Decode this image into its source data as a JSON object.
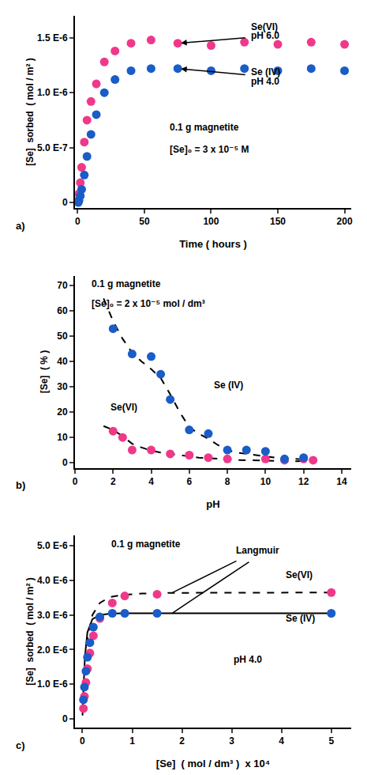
{
  "chart_data": [
    {
      "type": "scatter",
      "xlabel": "Time ( hours )",
      "ylabel": "[Se]  sorbed  ( mol / m² )",
      "xlim": [
        -2,
        205
      ],
      "ylim": [
        -5e-08,
        1.7e-06
      ],
      "xticks": [
        0,
        50,
        100,
        150,
        200
      ],
      "yticks": [
        0,
        {
          "value": 5e-07,
          "label": "5.0 E-7"
        },
        {
          "value": 1e-06,
          "label": "1.0 E-6"
        },
        {
          "value": 1.5e-06,
          "label": "1.5 E-6"
        }
      ],
      "grid": false,
      "annotations": [
        "Se(VI)",
        "pH 6.0",
        "Se (IV)",
        "pH 4.0",
        "0.1 g magnetite",
        "[Se]₀ = 3 x 10⁻⁵ M",
        "a)"
      ],
      "series": [
        {
          "type": "scatter",
          "marker": "circle",
          "color": "#F0388A",
          "x": [
            0.5,
            1,
            2,
            3,
            5,
            7,
            10,
            14,
            20,
            28,
            40,
            55,
            75,
            100,
            125,
            150,
            175,
            200
          ],
          "values": [
            2e-08,
            8e-08,
            1.8e-07,
            3.2e-07,
            5.5e-07,
            7.5e-07,
            9.2e-07,
            1.08e-06,
            1.28e-06,
            1.38e-06,
            1.45e-06,
            1.48e-06,
            1.45e-06,
            1.43e-06,
            1.46e-06,
            1.44e-06,
            1.46e-06,
            1.44e-06
          ]
        },
        {
          "type": "scatter",
          "marker": "circle",
          "color": "#1A5CC8",
          "x": [
            0.5,
            1,
            2,
            3,
            5,
            7,
            10,
            14,
            20,
            28,
            40,
            55,
            75,
            100,
            125,
            150,
            175,
            200
          ],
          "values": [
            0.0,
            2e-08,
            6e-08,
            1.2e-07,
            2.5e-07,
            4.2e-07,
            6.2e-07,
            8e-07,
            1e-06,
            1.12e-06,
            1.2e-06,
            1.22e-06,
            1.22e-06,
            1.2e-06,
            1.22e-06,
            1.2e-06,
            1.22e-06,
            1.2e-06
          ]
        }
      ]
    },
    {
      "type": "scatter",
      "xlabel": "pH",
      "ylabel": "[Se]  ( % )",
      "xlim": [
        0,
        14.5
      ],
      "ylim": [
        -2,
        74
      ],
      "xticks": [
        0,
        2,
        4,
        6,
        8,
        10,
        12,
        14
      ],
      "yticks": [
        0,
        10,
        20,
        30,
        40,
        50,
        60,
        70
      ],
      "grid": false,
      "annotations": [
        "0.1 g magnetite",
        "[Se]₀ = 2 x 10⁻⁵ mol / dm³",
        "Se(VI)",
        "Se (IV)",
        "b)"
      ],
      "series": [
        {
          "type": "line",
          "line_style": "dashed",
          "color": "#000000",
          "x": [
            1.5,
            2.0,
            2.5,
            3.0,
            3.5,
            4.0,
            4.5,
            5.0,
            5.5,
            6.0,
            6.5,
            7.0,
            7.5,
            8.0,
            8.5,
            9.0,
            9.5,
            10.0,
            10.5,
            11.0,
            11.5,
            12.0,
            12.5,
            13.0
          ],
          "values": [
            65.0,
            56.0,
            49.0,
            43.5,
            40.0,
            37.0,
            33.5,
            27.0,
            20.0,
            14.0,
            11.5,
            9.5,
            7.0,
            5.0,
            4.0,
            3.5,
            2.8,
            2.5,
            2.0,
            1.8,
            1.5,
            1.3,
            1.0,
            0.8
          ]
        },
        {
          "type": "line",
          "line_style": "dashed",
          "color": "#000000",
          "x": [
            1.5,
            2.0,
            2.5,
            3.0,
            3.5,
            4.0,
            4.5,
            5.0,
            5.5,
            6.0,
            6.5,
            7.0,
            7.5,
            8.0,
            8.5,
            9.0,
            9.5,
            10.0,
            10.5,
            11.0,
            11.5,
            12.0,
            12.5,
            13.0
          ],
          "values": [
            14.5,
            13.0,
            10.5,
            7.5,
            6.0,
            4.8,
            4.0,
            3.5,
            3.0,
            2.5,
            2.0,
            1.8,
            1.5,
            1.3,
            1.1,
            1.0,
            0.9,
            0.8,
            0.7,
            0.65,
            0.6,
            0.7,
            0.7,
            0.6
          ]
        },
        {
          "type": "scatter",
          "marker": "circle",
          "color": "#F0388A",
          "x": [
            2.0,
            2.5,
            3.0,
            4.0,
            5.0,
            6.0,
            7.0,
            8.0,
            10.0,
            11.0,
            12.0,
            12.5
          ],
          "values": [
            12.5,
            10.0,
            5.0,
            5.0,
            3.5,
            3.0,
            2.0,
            1.5,
            1.5,
            1.0,
            1.5,
            1.0
          ]
        },
        {
          "type": "scatter",
          "marker": "circle",
          "color": "#1A5CC8",
          "x": [
            2.0,
            3.0,
            4.0,
            4.5,
            5.0,
            6.0,
            7.0,
            8.0,
            9.0,
            10.0,
            11.0,
            12.0
          ],
          "values": [
            53.0,
            43.0,
            42.0,
            35.0,
            25.0,
            13.0,
            11.5,
            5.0,
            5.0,
            4.5,
            1.5,
            2.0
          ]
        }
      ]
    },
    {
      "type": "scatter",
      "xlabel": "[Se]  ( mol / dm³ )  x 10⁴",
      "ylabel": "[Se]  sorbed  ( mol / m² )",
      "xlim": [
        -1.5e-05,
        0.00054
      ],
      "ylim": [
        -2.5e-07,
        5.3e-06
      ],
      "xticks": [
        0,
        {
          "value": 0.0001,
          "label": "1"
        },
        {
          "value": 0.0002,
          "label": "2"
        },
        {
          "value": 0.0003,
          "label": "3"
        },
        {
          "value": 0.0004,
          "label": "4"
        },
        {
          "value": 0.0005,
          "label": "5"
        }
      ],
      "yticks": [
        0,
        {
          "value": 1e-06,
          "label": "1.0 E-6"
        },
        {
          "value": 2e-06,
          "label": "2.0 E-6"
        },
        {
          "value": 3e-06,
          "label": "3.0 E-6"
        },
        {
          "value": 4e-06,
          "label": "4.0 E-6"
        },
        {
          "value": 5e-06,
          "label": "5.0 E-6"
        }
      ],
      "grid": false,
      "annotations": [
        "0.1 g magnetite",
        "pH 4.0",
        "Langmuir",
        "Se(VI)",
        "Se (IV)",
        "c)"
      ],
      "series": [
        {
          "type": "line",
          "line_style": "dashed",
          "color": "#000000",
          "x": [
            1e-07,
            5e-06,
            1e-05,
            2e-05,
            3.5e-05,
            5.5e-05,
            8e-05,
            0.00012,
            0.00018,
            0.0005
          ],
          "values": [
            1e-07,
            1.5e-06,
            2.3e-06,
            3e-06,
            3.35e-06,
            3.52e-06,
            3.58e-06,
            3.62e-06,
            3.64e-06,
            3.65e-06
          ]
        },
        {
          "type": "line",
          "line_style": "solid",
          "color": "#000000",
          "x": [
            1e-07,
            5e-06,
            1e-05,
            2e-05,
            3.5e-05,
            5.5e-05,
            8e-05,
            0.00012,
            0.00018,
            0.0005
          ],
          "values": [
            2e-07,
            1.8e-06,
            2.5e-06,
            2.88e-06,
            3e-06,
            3.04e-06,
            3.05e-06,
            3.05e-06,
            3.05e-06,
            3.05e-06
          ]
        },
        {
          "type": "scatter",
          "marker": "circle",
          "color": "#F0388A",
          "x": [
            2e-06,
            4e-06,
            7e-06,
            1e-05,
            1.5e-05,
            2.2e-05,
            3.5e-05,
            6e-05,
            8.5e-05,
            0.00015,
            0.0005
          ],
          "values": [
            3e-07,
            6.5e-07,
            1.05e-06,
            1.45e-06,
            1.9e-06,
            2.4e-06,
            2.9e-06,
            3.35e-06,
            3.55e-06,
            3.6e-06,
            3.65e-06
          ]
        },
        {
          "type": "scatter",
          "marker": "circle",
          "color": "#1A5CC8",
          "x": [
            2e-06,
            4e-06,
            7e-06,
            1e-05,
            1.5e-05,
            2.2e-05,
            3.5e-05,
            6e-05,
            8.5e-05,
            0.00015,
            0.0005
          ],
          "values": [
            5.5e-07,
            9.2e-07,
            1.38e-06,
            1.78e-06,
            2.2e-06,
            2.65e-06,
            2.95e-06,
            3.05e-06,
            3.05e-06,
            3.05e-06,
            3.05e-06
          ]
        }
      ]
    }
  ]
}
